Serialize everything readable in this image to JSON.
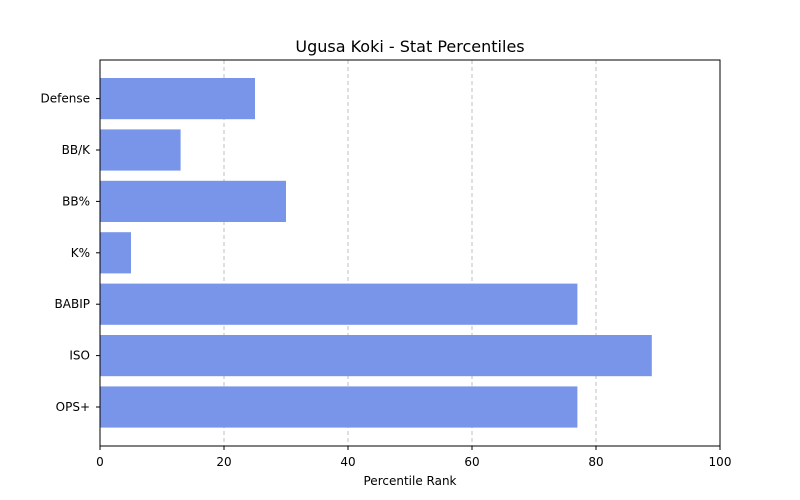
{
  "chart_data": {
    "type": "bar",
    "orientation": "horizontal",
    "title": "Ugusa Koki - Stat Percentiles",
    "xlabel": "Percentile Rank",
    "ylabel": "",
    "categories": [
      "OPS+",
      "ISO",
      "BABIP",
      "K%",
      "BB%",
      "BB/K",
      "Defense"
    ],
    "values": [
      77,
      89,
      77,
      5,
      30,
      13,
      25
    ],
    "xlim": [
      0,
      100
    ],
    "xticks": [
      "0",
      "20",
      "40",
      "60",
      "80",
      "100"
    ],
    "grid": "x-dashed",
    "bar_color": "#7995e9"
  }
}
